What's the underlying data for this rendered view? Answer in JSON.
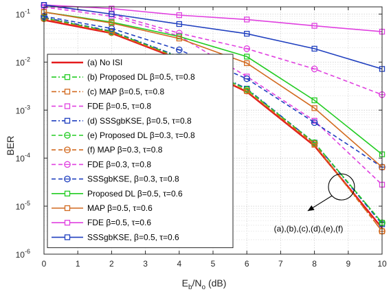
{
  "chart_data": {
    "type": "line",
    "title": "",
    "xlabel": "E_b/N_o (dB)",
    "xlabel_parts": {
      "main": "E",
      "sub1": "b",
      "mid": "/N",
      "sub2": "o",
      "rest": " (dB)"
    },
    "ylabel": "BER",
    "xlim": [
      0,
      10
    ],
    "ylim_log10": [
      -6,
      -0.85
    ],
    "y_scale": "log",
    "x_ticks": [
      0,
      1,
      2,
      3,
      4,
      5,
      6,
      7,
      8,
      9,
      10
    ],
    "y_ticks": [
      {
        "exp": -6,
        "label_base": "10",
        "label_exp": "-6"
      },
      {
        "exp": -5,
        "label_base": "10",
        "label_exp": "-5"
      },
      {
        "exp": -4,
        "label_base": "10",
        "label_exp": "-4"
      },
      {
        "exp": -3,
        "label_base": "10",
        "label_exp": "-3"
      },
      {
        "exp": -2,
        "label_base": "10",
        "label_exp": "-2"
      },
      {
        "exp": -1,
        "label_base": "10",
        "label_exp": "-1"
      }
    ],
    "grid": true,
    "legend_position": "left",
    "series": [
      {
        "name": "(a) No ISI",
        "color": "#e41a1c",
        "dash": "solid",
        "marker": "none",
        "width": 2.5,
        "x": [
          0,
          2,
          4,
          6,
          8,
          10
        ],
        "y": [
          0.075,
          0.04,
          0.0115,
          0.0024,
          0.00018,
          3.5e-06
        ]
      },
      {
        "name": "(b) Proposed DL β=0.5, τ=0.8",
        "color": "#22cc22",
        "dash": "dashdot",
        "marker": "square",
        "x": [
          0,
          2,
          4,
          6,
          8,
          10
        ],
        "y": [
          0.085,
          0.044,
          0.013,
          0.0027,
          0.00021,
          4.5e-06
        ]
      },
      {
        "name": "(c) MAP β=0.5, τ=0.8",
        "color": "#d2691e",
        "dash": "dashdot",
        "marker": "square",
        "x": [
          0,
          2,
          4,
          6,
          8,
          10
        ],
        "y": [
          0.082,
          0.042,
          0.012,
          0.0025,
          0.00019,
          3e-06
        ]
      },
      {
        "name": "FDE β=0.5, τ=0.8",
        "color": "#e040e0",
        "dash": "dashed",
        "marker": "square",
        "x": [
          0,
          2,
          4,
          6,
          8,
          10
        ],
        "y": [
          0.14,
          0.09,
          0.035,
          0.005,
          0.0006,
          2.8e-05
        ]
      },
      {
        "name": "(d) SSSgbKSE, β=0.5, τ=0.8",
        "color": "#1f3fbf",
        "dash": "dashdot",
        "marker": "square",
        "x": [
          0,
          2,
          4,
          6,
          8,
          10
        ],
        "y": [
          0.085,
          0.044,
          0.013,
          0.0028,
          0.00021,
          4.2e-06
        ]
      },
      {
        "name": "(e) Proposed DL β=0.3, τ=0.8",
        "color": "#22cc22",
        "dash": "dashed",
        "marker": "circle",
        "x": [
          0,
          2,
          4,
          6,
          8,
          10
        ],
        "y": [
          0.083,
          0.043,
          0.0125,
          0.0027,
          0.00021,
          4.5e-06
        ]
      },
      {
        "name": "(f) MAP β=0.3, τ=0.8",
        "color": "#d2691e",
        "dash": "dashed",
        "marker": "circle",
        "x": [
          0,
          2,
          4,
          6,
          8,
          10
        ],
        "y": [
          0.08,
          0.041,
          0.012,
          0.0025,
          0.0002,
          3e-06
        ]
      },
      {
        "name": "FDE β=0.3, τ=0.8",
        "color": "#e040e0",
        "dash": "dashed",
        "marker": "circle",
        "x": [
          0,
          2,
          4,
          6,
          8,
          10
        ],
        "y": [
          0.15,
          0.1,
          0.04,
          0.019,
          0.0072,
          0.0021
        ]
      },
      {
        "name": "SSSgbKSE, β=0.3, τ=0.8",
        "color": "#1f3fbf",
        "dash": "dashed",
        "marker": "circle",
        "x": [
          0,
          2,
          4,
          6,
          8,
          10
        ],
        "y": [
          0.09,
          0.05,
          0.018,
          0.0045,
          0.00055,
          6.5e-05
        ]
      },
      {
        "name": "Proposed DL β=0.5, τ=0.6",
        "color": "#22cc22",
        "dash": "solid",
        "marker": "square",
        "x": [
          0,
          2,
          4,
          6,
          8,
          10
        ],
        "y": [
          0.11,
          0.068,
          0.034,
          0.013,
          0.0016,
          0.00012
        ]
      },
      {
        "name": "MAP β=0.5, τ=0.6",
        "color": "#d2691e",
        "dash": "solid",
        "marker": "square",
        "x": [
          0,
          2,
          4,
          6,
          8,
          10
        ],
        "y": [
          0.11,
          0.065,
          0.031,
          0.0095,
          0.0011,
          6.5e-05
        ]
      },
      {
        "name": "FDE β=0.5, τ=0.6",
        "color": "#e040e0",
        "dash": "solid",
        "marker": "square",
        "x": [
          0,
          2,
          4,
          6,
          8,
          10
        ],
        "y": [
          0.155,
          0.13,
          0.095,
          0.077,
          0.057,
          0.043
        ]
      },
      {
        "name": "SSSgbKSE, β=0.5, τ=0.6",
        "color": "#1f3fbf",
        "dash": "solid",
        "marker": "square",
        "x": [
          0,
          2,
          4,
          6,
          8,
          10
        ],
        "y": [
          0.155,
          0.1,
          0.062,
          0.039,
          0.019,
          0.0072
        ]
      }
    ],
    "annotation": {
      "text": "(a),(b),(c),(d),(e),(f)",
      "circle_center": [
        8.8,
        -4.6
      ],
      "arrow_to": [
        7.8,
        -5.1
      ]
    }
  }
}
